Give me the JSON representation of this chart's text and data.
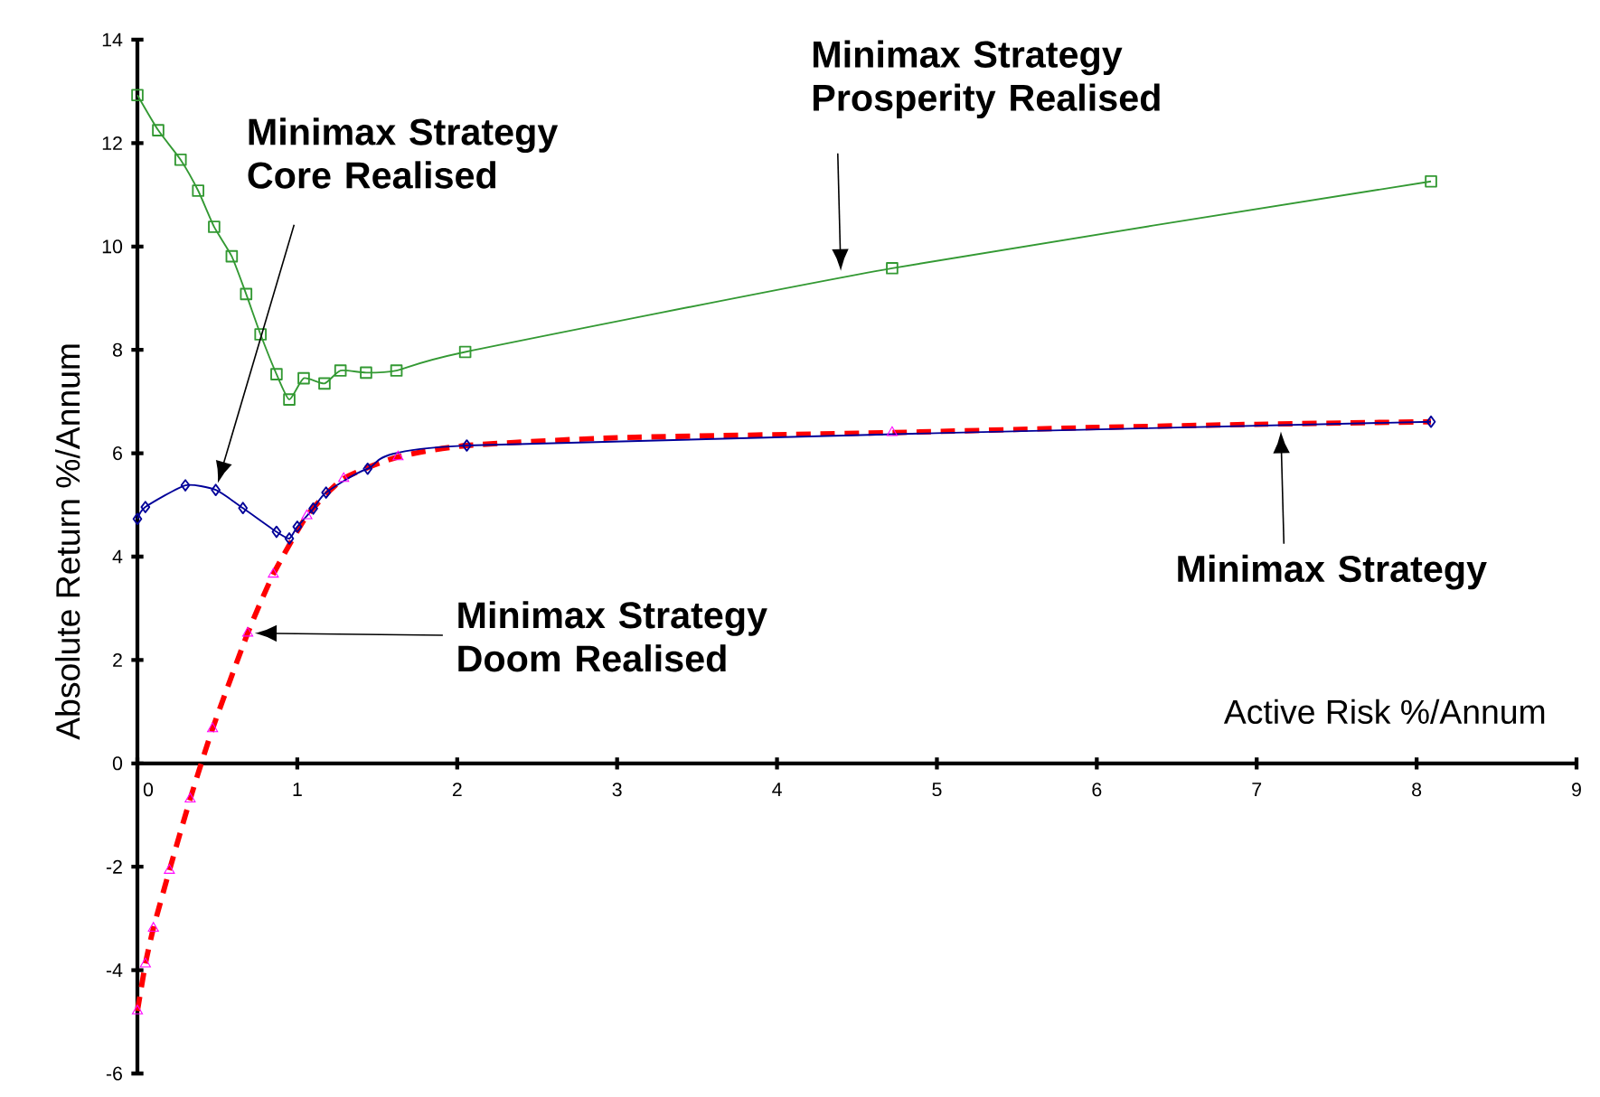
{
  "chart_data": {
    "type": "line",
    "xlabel": "Active Risk %/Annum",
    "ylabel": "Absolute Return %/Annum",
    "xlim": [
      0,
      9
    ],
    "ylim": [
      -6,
      14
    ],
    "xticks": [
      0,
      1,
      2,
      3,
      4,
      5,
      6,
      7,
      8,
      9
    ],
    "yticks": [
      -6,
      -4,
      -2,
      0,
      2,
      4,
      6,
      8,
      10,
      12,
      14
    ],
    "grid": false,
    "legend": false,
    "annotations": [
      "Minimax Strategy Prosperity Realised",
      "Minimax Strategy Core Realised",
      "Minimax Strategy Doom Realised",
      "Minimax Strategy"
    ],
    "series": [
      {
        "type": "line",
        "color": "#ff0000",
        "line_style": "dashed",
        "marker": "none",
        "x": [
          0,
          0.05,
          0.1,
          0.2,
          0.33,
          0.47,
          0.69,
          0.85,
          1.06,
          1.29,
          1.63,
          2.06,
          3,
          4.72,
          6,
          7,
          8.09
        ],
        "values": [
          -4.79,
          -3.88,
          -3.19,
          -2.07,
          -0.69,
          0.67,
          2.52,
          3.66,
          4.79,
          5.51,
          5.93,
          6.15,
          6.3,
          6.4,
          6.5,
          6.56,
          6.61
        ]
      },
      {
        "type": "line",
        "color": "#339933",
        "line_style": "solid",
        "marker": "square",
        "x": [
          0,
          0.13,
          0.27,
          0.38,
          0.48,
          0.59,
          0.68,
          0.77,
          0.87,
          0.95,
          1.04,
          1.17,
          1.27,
          1.43,
          1.62,
          2.05,
          4.72,
          8.09
        ],
        "values": [
          12.93,
          12.25,
          11.68,
          11.08,
          10.38,
          9.81,
          9.08,
          8.3,
          7.53,
          7.04,
          7.45,
          7.35,
          7.6,
          7.56,
          7.6,
          7.96,
          9.58,
          11.26
        ]
      },
      {
        "type": "line",
        "color": "#000099",
        "line_style": "solid",
        "marker": "diamond",
        "x": [
          0,
          0.05,
          0.3,
          0.49,
          0.66,
          0.87,
          0.95,
          1.0,
          1.1,
          1.18,
          1.44,
          2.06,
          8.09
        ],
        "values": [
          4.73,
          4.96,
          5.38,
          5.29,
          4.94,
          4.48,
          4.35,
          4.58,
          4.93,
          5.24,
          5.7,
          6.15,
          6.61
        ]
      },
      {
        "type": "scatter",
        "color": "#ff00ff",
        "marker": "triangle",
        "x": [
          0,
          0.05,
          0.1,
          0.2,
          0.33,
          0.47,
          0.69,
          0.85,
          1.06,
          1.29,
          1.63,
          4.72
        ],
        "values": [
          -4.79,
          -3.88,
          -3.19,
          -2.07,
          -0.69,
          0.67,
          2.52,
          3.66,
          4.79,
          5.51,
          5.93,
          6.4
        ]
      }
    ]
  }
}
